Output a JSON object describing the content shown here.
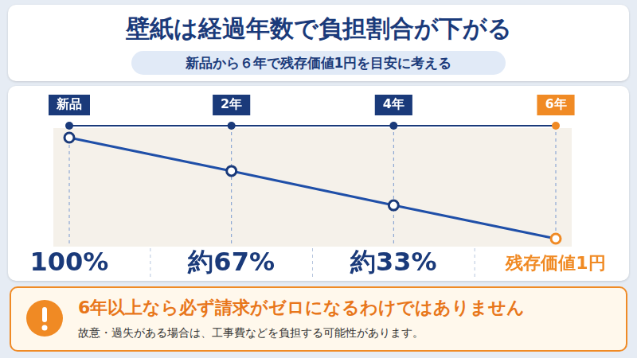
{
  "header": {
    "title": "壁紙は経過年数で負担割合が下がる",
    "subtitle": "新品から６年で残存価値1円を目安に考える"
  },
  "chart_data": {
    "type": "line",
    "categories": [
      "新品",
      "2年",
      "4年",
      "6年"
    ],
    "values": [
      100,
      67,
      33,
      0
    ],
    "value_labels": [
      "100%",
      "約67%",
      "約33%",
      "残存価値1円"
    ],
    "data_labels": true,
    "color": "#1f4fa8",
    "colors": [
      "#1a3a7a",
      "#1a3a7a",
      "#1a3a7a",
      "#f08a24"
    ],
    "marker": "circle",
    "ylim": [
      0,
      100
    ],
    "yticks": [
      0,
      100
    ],
    "grid": false,
    "tick_labels": "x"
  },
  "note": {
    "heading": "6年以上なら必ず請求がゼロになるわけではありません",
    "text": "故意・過失がある場合は、工事費などを負担する可能性があります。"
  }
}
